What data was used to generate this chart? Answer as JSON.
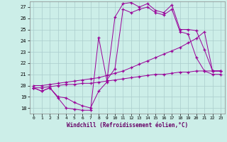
{
  "xlabel": "Windchill (Refroidissement éolien,°C)",
  "background_color": "#cceee8",
  "line_color": "#990099",
  "grid_color": "#aacccc",
  "ylim": [
    17.5,
    27.5
  ],
  "xlim": [
    -0.5,
    23.5
  ],
  "yticks": [
    18,
    19,
    20,
    21,
    22,
    23,
    24,
    25,
    26,
    27
  ],
  "xticks": [
    0,
    1,
    2,
    3,
    4,
    5,
    6,
    7,
    8,
    9,
    10,
    11,
    12,
    13,
    14,
    15,
    16,
    17,
    18,
    19,
    20,
    21,
    22,
    23
  ],
  "series": [
    {
      "x": [
        0,
        1,
        2,
        3,
        4,
        5,
        6,
        7,
        8,
        9,
        10,
        11,
        12,
        13,
        14,
        15,
        16,
        17,
        18,
        19,
        20,
        21,
        22,
        23
      ],
      "y": [
        19.8,
        19.5,
        19.8,
        19.0,
        18.9,
        18.5,
        18.2,
        18.0,
        19.5,
        20.3,
        26.1,
        27.3,
        27.4,
        27.0,
        27.3,
        26.7,
        26.5,
        27.2,
        25.0,
        25.0,
        24.9,
        23.2,
        21.3,
        21.3
      ]
    },
    {
      "x": [
        0,
        1,
        2,
        3,
        4,
        5,
        6,
        7,
        8,
        9,
        10,
        11,
        12,
        13,
        14,
        15,
        16,
        17,
        18,
        19,
        20,
        21,
        22,
        23
      ],
      "y": [
        19.8,
        19.5,
        19.8,
        18.9,
        18.0,
        17.9,
        17.8,
        17.8,
        24.3,
        20.5,
        21.5,
        26.8,
        26.5,
        26.8,
        27.0,
        26.5,
        26.3,
        26.8,
        24.8,
        24.6,
        22.5,
        21.3,
        21.0,
        21.0
      ]
    },
    {
      "x": [
        0,
        1,
        2,
        3,
        4,
        5,
        6,
        7,
        8,
        9,
        10,
        11,
        12,
        13,
        14,
        15,
        16,
        17,
        18,
        19,
        20,
        21,
        22,
        23
      ],
      "y": [
        20.0,
        20.0,
        20.1,
        20.2,
        20.3,
        20.4,
        20.5,
        20.6,
        20.7,
        20.9,
        21.1,
        21.3,
        21.6,
        21.9,
        22.2,
        22.5,
        22.8,
        23.1,
        23.4,
        23.8,
        24.2,
        24.8,
        21.3,
        21.3
      ]
    },
    {
      "x": [
        0,
        1,
        2,
        3,
        4,
        5,
        6,
        7,
        8,
        9,
        10,
        11,
        12,
        13,
        14,
        15,
        16,
        17,
        18,
        19,
        20,
        21,
        22,
        23
      ],
      "y": [
        19.8,
        19.8,
        19.9,
        20.0,
        20.1,
        20.1,
        20.2,
        20.2,
        20.3,
        20.4,
        20.5,
        20.6,
        20.7,
        20.8,
        20.9,
        21.0,
        21.0,
        21.1,
        21.2,
        21.2,
        21.3,
        21.3,
        21.3,
        21.3
      ]
    }
  ]
}
